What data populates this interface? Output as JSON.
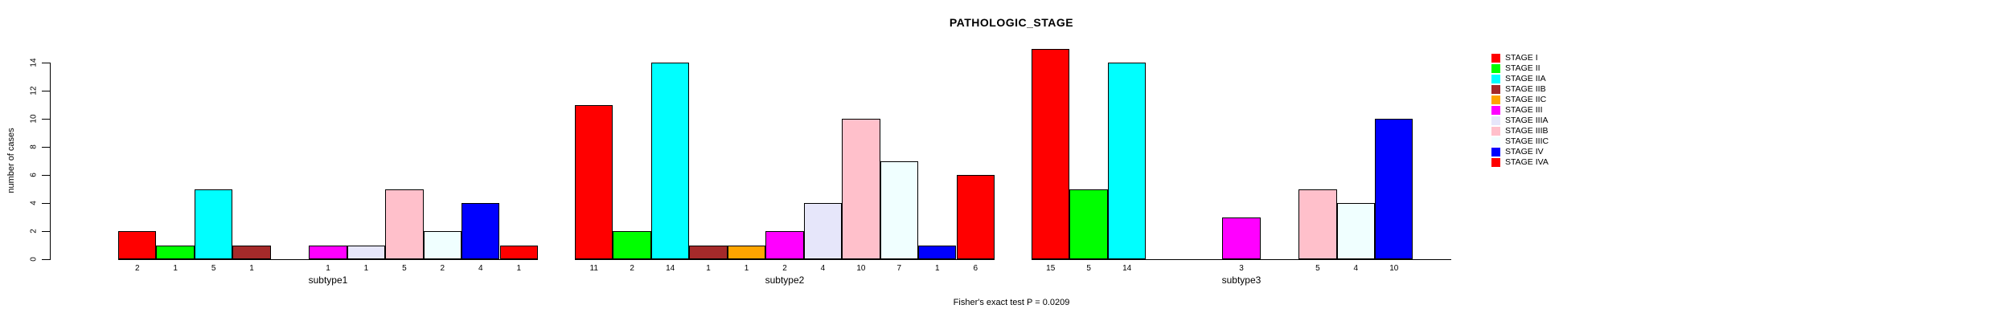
{
  "title": "PATHOLOGIC_STAGE",
  "footer": "Fisher's exact test P = 0.0209",
  "chart_data": {
    "type": "bar",
    "title": "PATHOLOGIC_STAGE",
    "xlabel": "",
    "ylabel": "number of cases",
    "ylim": [
      0,
      14
    ],
    "yticks": [
      0,
      2,
      4,
      6,
      8,
      10,
      12,
      14
    ],
    "grid": false,
    "legend_position": "right",
    "annotation": "Fisher's exact test P = 0.0209",
    "categories": [
      "subtype1",
      "subtype2",
      "subtype3"
    ],
    "series": [
      {
        "name": "STAGE I",
        "color": "#FF0000",
        "values": [
          2,
          11,
          15
        ]
      },
      {
        "name": "STAGE II",
        "color": "#00FF00",
        "values": [
          1,
          2,
          5
        ]
      },
      {
        "name": "STAGE IIA",
        "color": "#00FFFF",
        "values": [
          5,
          14,
          14
        ]
      },
      {
        "name": "STAGE IIB",
        "color": "#A52A2A",
        "values": [
          1,
          1,
          0
        ]
      },
      {
        "name": "STAGE IIC",
        "color": "#FFA500",
        "values": [
          0,
          1,
          0
        ]
      },
      {
        "name": "STAGE III",
        "color": "#FF00FF",
        "values": [
          1,
          2,
          3
        ]
      },
      {
        "name": "STAGE IIIA",
        "color": "#E6E6FA",
        "values": [
          1,
          4,
          0
        ]
      },
      {
        "name": "STAGE IIIB",
        "color": "#FFC0CB",
        "values": [
          5,
          10,
          5
        ]
      },
      {
        "name": "STAGE IIIC",
        "color": "#F0FFFF",
        "values": [
          2,
          7,
          4
        ]
      },
      {
        "name": "STAGE IV",
        "color": "#0000FF",
        "values": [
          4,
          1,
          10
        ]
      },
      {
        "name": "STAGE IVA",
        "color": "#FF0000",
        "values": [
          1,
          6,
          0
        ]
      }
    ],
    "bar_value_labels_shown": true,
    "zero_value_bars_hidden": true,
    "axis_color": "#000000",
    "background_color": "#FFFFFF"
  }
}
